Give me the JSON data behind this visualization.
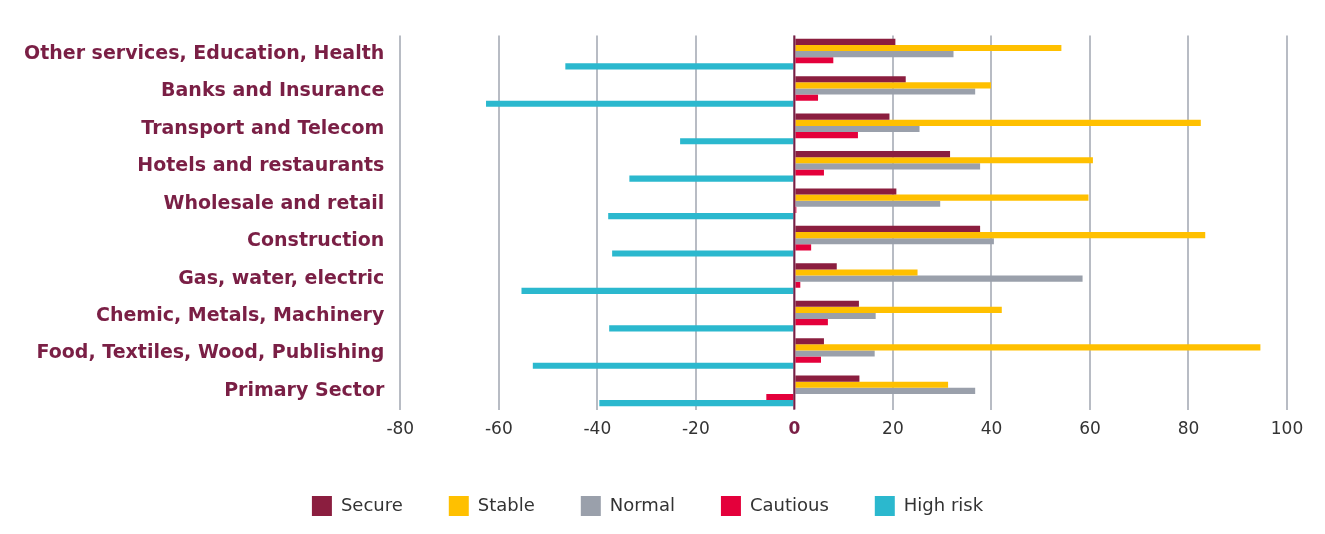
{
  "chart_data": {
    "type": "bar",
    "orientation": "horizontal",
    "categories": [
      "Other services, Education, Health",
      "Banks and Insurance",
      "Transport and Telecom",
      "Hotels and restaurants",
      "Wholesale and retail",
      "Construction",
      "Gas, water, electric",
      "Chemic, Metals, Machinery",
      "Food, Textiles, Wood, Publishing",
      "Primary Sector"
    ],
    "series": [
      {
        "name": "Secure",
        "color": "#8b1e3f",
        "values": [
          20.5,
          22.6,
          19.3,
          31.6,
          20.7,
          37.7,
          8.6,
          13.1,
          6.0,
          13.2
        ]
      },
      {
        "name": "Stable",
        "color": "#ffc000",
        "values": [
          54.2,
          39.9,
          82.5,
          60.6,
          59.7,
          83.4,
          25.0,
          42.1,
          94.6,
          31.2
        ]
      },
      {
        "name": "Normal",
        "color": "#9aa0ab",
        "values": [
          32.3,
          36.7,
          25.4,
          37.7,
          29.6,
          40.5,
          58.5,
          16.5,
          16.3,
          36.7
        ]
      },
      {
        "name": "Cautious",
        "color": "#e4003b",
        "values": [
          7.9,
          4.8,
          12.9,
          6.0,
          0.4,
          3.4,
          1.2,
          6.8,
          5.4,
          -5.7
        ]
      },
      {
        "name": "High risk",
        "color": "#2bb8ce",
        "values": [
          -46.5,
          -62.6,
          -23.2,
          -33.5,
          -37.8,
          -37.0,
          -55.4,
          -37.6,
          -53.1,
          -39.6
        ]
      }
    ],
    "xlim": [
      -80,
      100
    ],
    "xticks": [
      -80,
      -60,
      -40,
      -20,
      0,
      20,
      40,
      60,
      80,
      100
    ],
    "ref_lines": [
      {
        "axis": "x",
        "value": 0,
        "color": "#7a1f45"
      }
    ],
    "grid": "x",
    "legend": "bottom"
  }
}
